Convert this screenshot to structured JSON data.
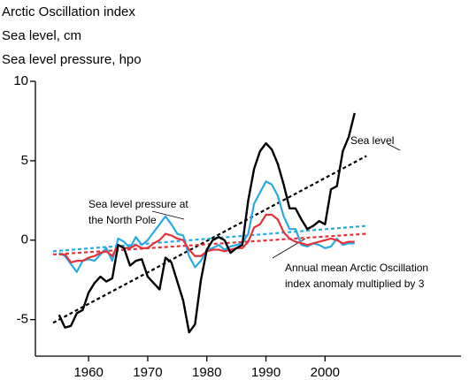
{
  "chart_data": {
    "type": "line",
    "titles": [
      "Arctic Oscillation index",
      "Sea level, cm",
      "Sea level pressure, hpo"
    ],
    "x": [
      1955,
      1956,
      1957,
      1958,
      1959,
      1960,
      1961,
      1962,
      1963,
      1964,
      1965,
      1966,
      1967,
      1968,
      1969,
      1970,
      1971,
      1972,
      1973,
      1974,
      1975,
      1976,
      1977,
      1978,
      1979,
      1980,
      1981,
      1982,
      1983,
      1984,
      1985,
      1986,
      1987,
      1988,
      1989,
      1990,
      1991,
      1992,
      1993,
      1994,
      1995,
      1996,
      1997,
      1998,
      1999,
      2000,
      2001,
      2002,
      2003,
      2004,
      2005
    ],
    "series": [
      {
        "color": "#29abe2",
        "values": [
          -0.8,
          -1.0,
          -1.5,
          -2.0,
          -1.3,
          -1.2,
          -1.3,
          -0.9,
          -0.5,
          -1.3,
          0.1,
          -0.1,
          -0.5,
          0.2,
          -0.3,
          0.0,
          0.5,
          1.0,
          1.5,
          1.0,
          0.4,
          0.3,
          -1.0,
          -1.7,
          -1.3,
          -0.6,
          -0.5,
          -0.3,
          -0.6,
          -0.4,
          -0.3,
          -0.2,
          0.4,
          2.3,
          3.0,
          3.7,
          3.5,
          2.8,
          1.5,
          0.7,
          0.7,
          -0.3,
          -0.4,
          -0.2,
          -0.3,
          -0.5,
          -0.4,
          0.1,
          -0.3,
          -0.2,
          -0.2
        ]
      },
      {
        "color": "#e5323a",
        "values": [
          -0.9,
          -0.9,
          -1.4,
          -1.3,
          -1.3,
          -1.1,
          -1.0,
          -0.8,
          -0.7,
          -1.0,
          -0.3,
          -0.5,
          -0.5,
          -0.3,
          -0.5,
          -0.5,
          -0.2,
          0.0,
          0.4,
          0.3,
          0.1,
          0.0,
          -0.6,
          -1.0,
          -1.0,
          -0.7,
          -0.6,
          -0.6,
          -0.7,
          -0.6,
          -0.5,
          -0.5,
          -0.1,
          0.8,
          1.0,
          1.6,
          1.6,
          1.3,
          0.5,
          0.1,
          -0.1,
          -0.2,
          -0.3,
          -0.2,
          -0.1,
          0.0,
          0.1,
          0.0,
          -0.2,
          -0.1,
          -0.1
        ]
      },
      {
        "color": "#000000",
        "values": [
          -4.7,
          -5.5,
          -5.4,
          -4.6,
          -4.4,
          -3.3,
          -2.7,
          -2.3,
          -2.6,
          -2.4,
          -0.3,
          -0.5,
          -1.6,
          -1.3,
          -1.2,
          -2.3,
          -2.7,
          -3.1,
          -1.1,
          -1.4,
          -2.6,
          -3.8,
          -5.8,
          -5.3,
          -2.5,
          -0.6,
          0.0,
          0.2,
          0.0,
          -0.8,
          -0.5,
          -0.3,
          2.5,
          4.5,
          5.6,
          6.1,
          5.7,
          4.8,
          3.5,
          2.0,
          2.0,
          1.3,
          0.7,
          0.9,
          1.2,
          1.0,
          3.2,
          3.4,
          5.6,
          6.5,
          8.0
        ]
      }
    ],
    "trends": [
      {
        "color": "#000000",
        "x": [
          1954,
          2007
        ],
        "values": [
          -5.2,
          5.3
        ]
      },
      {
        "color": "#29abe2",
        "x": [
          1954,
          2007
        ],
        "values": [
          -0.7,
          0.9
        ]
      },
      {
        "color": "#e5323a",
        "x": [
          1954,
          2007
        ],
        "values": [
          -0.9,
          0.4
        ]
      }
    ],
    "annotations": [
      [
        "Sea level"
      ],
      [
        "Sea level pressure at",
        "the North Pole"
      ],
      [
        "Annual mean Arctic Oscillation",
        "index anomaly multiplied by 3"
      ]
    ],
    "xlim": [
      1951,
      2023
    ],
    "xticks": [
      1960,
      1970,
      1980,
      1990,
      2000
    ],
    "ylim": [
      -7.3,
      10
    ],
    "yticks": [
      -5,
      0,
      5,
      10
    ]
  }
}
